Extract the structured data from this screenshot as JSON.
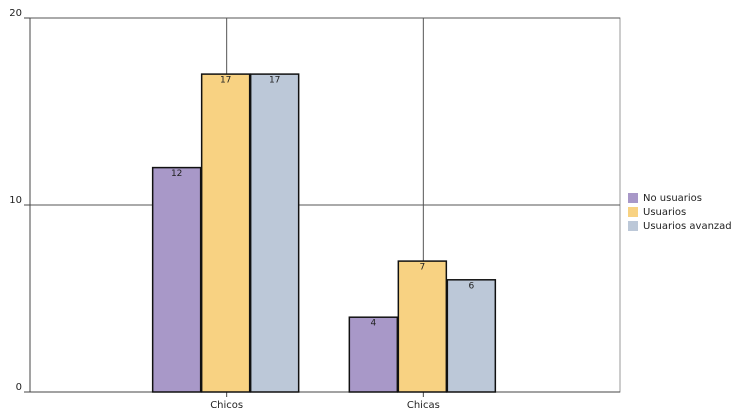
{
  "chart_data": {
    "type": "bar",
    "categories": [
      "Chicos",
      "Chicas"
    ],
    "series": [
      {
        "name": "No usuarios",
        "color": "#a898c8",
        "values": [
          12,
          4
        ]
      },
      {
        "name": "Usuarios",
        "color": "#f8d282",
        "values": [
          17,
          7
        ]
      },
      {
        "name": "Usuarios avanzados",
        "color": "#bcc8d8",
        "values": [
          17,
          6
        ]
      }
    ],
    "ylim": [
      0,
      20
    ],
    "yticks": [
      0,
      10,
      20
    ],
    "grid": true,
    "legend": "right"
  }
}
